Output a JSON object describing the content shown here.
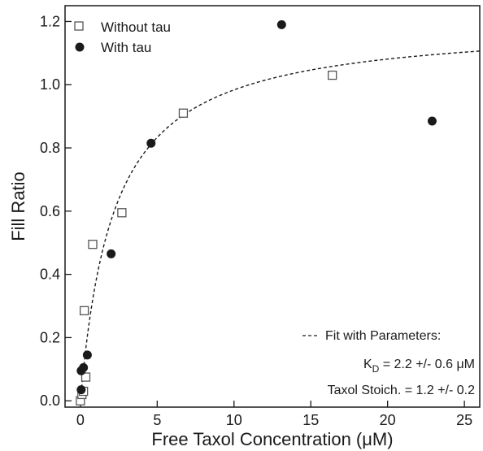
{
  "chart_data": {
    "type": "scatter",
    "xlabel": "Free Taxol Concentration (μM)",
    "ylabel": "Fill Ratio",
    "xlim": [
      -1,
      26
    ],
    "ylim": [
      -0.02,
      1.25
    ],
    "x_ticks": [
      0,
      5,
      10,
      15,
      20,
      25
    ],
    "x_tick_labels": [
      "0",
      "5",
      "10",
      "15",
      "20",
      "25"
    ],
    "y_ticks": [
      0.0,
      0.2,
      0.4,
      0.6,
      0.8,
      1.0,
      1.2
    ],
    "y_tick_labels": [
      "0.0",
      "0.2",
      "0.4",
      "0.6",
      "0.8",
      "1.0",
      "1.2"
    ],
    "grid": false,
    "legend_position": "top-left",
    "series": [
      {
        "name": "Without tau",
        "marker": "open-square",
        "color": "#555555",
        "points": [
          {
            "x": 0.0,
            "y": 0.0
          },
          {
            "x": 0.1,
            "y": 0.02
          },
          {
            "x": 0.2,
            "y": 0.03
          },
          {
            "x": 0.35,
            "y": 0.075
          },
          {
            "x": 0.25,
            "y": 0.285
          },
          {
            "x": 0.8,
            "y": 0.495
          },
          {
            "x": 2.7,
            "y": 0.595
          },
          {
            "x": 6.7,
            "y": 0.91
          },
          {
            "x": 16.4,
            "y": 1.03
          }
        ]
      },
      {
        "name": "With tau",
        "marker": "filled-circle",
        "color": "#1a1a1a",
        "points": [
          {
            "x": 0.05,
            "y": 0.035
          },
          {
            "x": 0.05,
            "y": 0.095
          },
          {
            "x": 0.2,
            "y": 0.105
          },
          {
            "x": 0.45,
            "y": 0.145
          },
          {
            "x": 2.0,
            "y": 0.465
          },
          {
            "x": 4.6,
            "y": 0.815
          },
          {
            "x": 13.1,
            "y": 1.19
          },
          {
            "x": 22.9,
            "y": 0.885
          }
        ]
      },
      {
        "name": "Fit with Parameters:",
        "type": "dashed-line",
        "color": "#1a1a1a",
        "function": "y = 1.2 * x / (2.2 + x)",
        "x_range": [
          0.01,
          26
        ]
      }
    ],
    "annotations": [
      {
        "prefix": "K",
        "subscript": "D",
        "suffix": " = 2.2 +/- 0.6 μM"
      },
      {
        "text": "Taxol Stoich. = 1.2 +/- 0.2"
      }
    ]
  }
}
